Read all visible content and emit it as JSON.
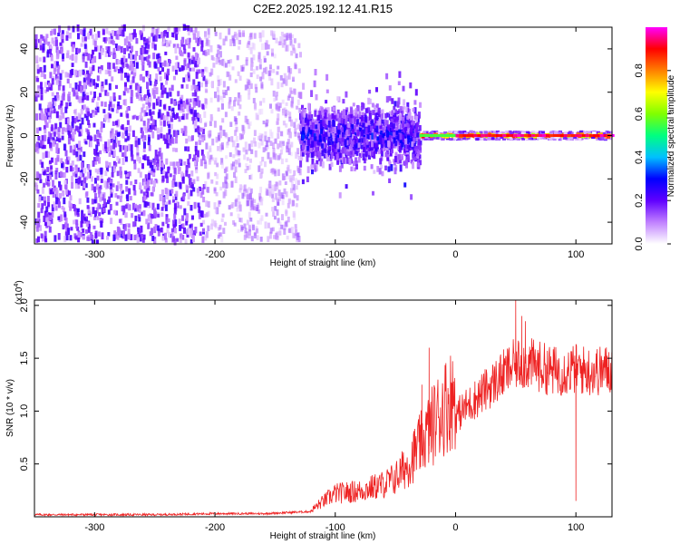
{
  "figure": {
    "title": "C2E2.2025.192.12.41.R15"
  },
  "chart_data": [
    {
      "type": "heatmap",
      "xlabel": "Height of straight line (km)",
      "ylabel": "Frequency (Hz)",
      "xlim": [
        -350,
        130
      ],
      "ylim": [
        -50,
        50
      ],
      "xticks": [
        -300,
        -200,
        -100,
        0,
        100
      ],
      "yticks": [
        -40,
        -20,
        0,
        20,
        40
      ],
      "colorbar": {
        "label": "Normalized spectral amplitude",
        "range": [
          0,
          1
        ],
        "ticks": [
          0.0,
          0.2,
          0.4,
          0.6,
          0.8
        ],
        "tick_labels": [
          "0.0",
          "0.2",
          "0.4",
          "0.6",
          "0.8"
        ],
        "colormap": [
          "#ffffff",
          "#c080ff",
          "#6000ff",
          "#0000ff",
          "#00c0ff",
          "#00ff80",
          "#80ff00",
          "#ffff00",
          "#ff8000",
          "#ff0000",
          "#ff00ff"
        ]
      },
      "regions": [
        {
          "x_range": [
            -350,
            -210
          ],
          "freq_spread": 50,
          "amplitude": 0.15,
          "density": "dense scatter"
        },
        {
          "x_range": [
            -210,
            -130
          ],
          "freq_spread": 48,
          "amplitude": 0.1,
          "density": "sparse scatter"
        },
        {
          "x_range": [
            -130,
            -30
          ],
          "freq_spread": 12,
          "amplitude": 0.3,
          "density": "dense band"
        },
        {
          "x_range": [
            -30,
            130
          ],
          "freq_spread": 2.5,
          "amplitude": 0.9,
          "density": "narrow line"
        }
      ]
    },
    {
      "type": "line",
      "xlabel": "Height of straight line (km)",
      "ylabel": "SNR (10 * v/v)",
      "y_multiplier": "(x10",
      "y_multiplier_exp": "4",
      "y_multiplier_close": ")",
      "xlim": [
        -350,
        130
      ],
      "ylim": [
        0,
        2.05
      ],
      "xticks": [
        -300,
        -200,
        -100,
        0,
        100
      ],
      "yticks": [
        0.5,
        1.0,
        1.5,
        2.0
      ],
      "ytick_labels": [
        "0.5",
        "1.0",
        "1.5",
        "2.0"
      ],
      "color": "#ee2222",
      "series": [
        {
          "x": [
            -350,
            -300,
            -250,
            -200,
            -160,
            -120,
            -110,
            -100,
            -80,
            -60,
            -50,
            -40,
            -30,
            -20,
            -10,
            0,
            10,
            20,
            30,
            40,
            50,
            60,
            70,
            80,
            90,
            100,
            110,
            120,
            130
          ],
          "values": [
            0.02,
            0.02,
            0.02,
            0.03,
            0.03,
            0.05,
            0.12,
            0.18,
            0.2,
            0.25,
            0.3,
            0.4,
            0.55,
            0.7,
            0.85,
            0.95,
            1.05,
            1.15,
            1.25,
            1.35,
            1.45,
            1.45,
            1.42,
            1.38,
            1.38,
            1.4,
            1.38,
            1.38,
            1.4
          ]
        }
      ],
      "spikes": [
        {
          "x": -28,
          "value": 1.25
        },
        {
          "x": -22,
          "value": 1.6
        },
        {
          "x": 50,
          "value": 2.05
        },
        {
          "x": 55,
          "value": 1.9
        },
        {
          "x": 58,
          "value": 1.85
        },
        {
          "x": 100,
          "value": 0.15
        }
      ]
    }
  ]
}
